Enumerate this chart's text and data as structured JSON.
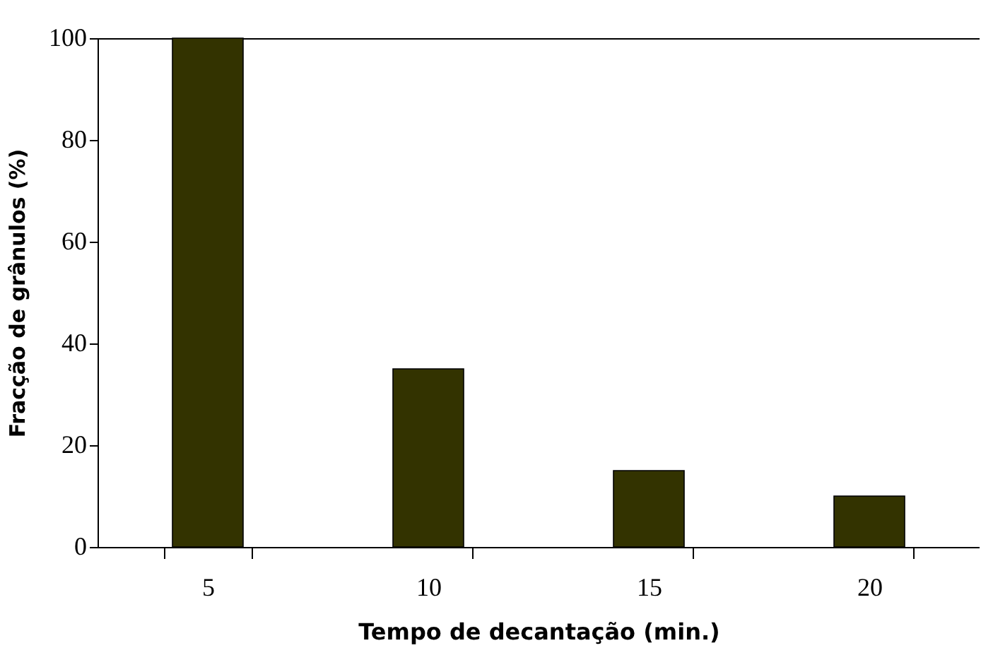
{
  "chart_data": {
    "type": "bar",
    "xlabel": "Tempo de decantação (min.)",
    "ylabel": "Fracção de grânulos (%)",
    "categories": [
      "5",
      "10",
      "15",
      "20"
    ],
    "values": [
      100,
      35,
      15,
      10
    ],
    "color": "#333300",
    "ylim": [
      0,
      100
    ],
    "yticks": [
      0,
      20,
      40,
      60,
      80,
      100
    ],
    "grid": false
  }
}
